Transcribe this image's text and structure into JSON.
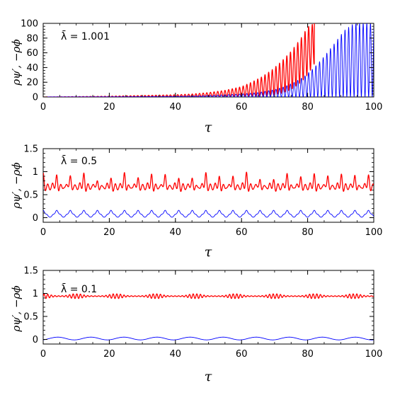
{
  "chart_data": [
    {
      "type": "line",
      "xlabel": "τ",
      "ylabel": "ρψ′, −ρϕ",
      "annotation": "λ̄ = 1.001",
      "xlim": [
        0,
        100
      ],
      "ylim": [
        0,
        100
      ],
      "xticks": [
        0,
        20,
        40,
        60,
        80,
        100
      ],
      "xtick_labels": [
        "0",
        "20",
        "40",
        "60",
        "80",
        "100"
      ],
      "yticks": [
        0,
        20,
        40,
        60,
        80,
        100
      ],
      "ytick_labels": [
        "0",
        "20",
        "40",
        "60",
        "80",
        "100"
      ],
      "grid": false,
      "series": [
        {
          "color": "#ff0000",
          "x": [
            0,
            10,
            20,
            30,
            40,
            45,
            50,
            55,
            60,
            63,
            66,
            69,
            72,
            75,
            78,
            80,
            82
          ],
          "y_min": [
            0,
            0,
            0,
            0,
            0,
            0,
            0,
            0,
            0,
            0,
            0,
            2,
            5,
            10,
            20,
            30,
            45
          ],
          "y_max": [
            0,
            0.5,
            1,
            2,
            3,
            4,
            6,
            9,
            14,
            20,
            27,
            36,
            48,
            62,
            80,
            95,
            100
          ],
          "oscillation_period": 1.1
        },
        {
          "color": "#0000ff",
          "x": [
            0,
            20,
            40,
            50,
            60,
            65,
            70,
            73,
            76,
            79,
            82,
            85,
            88,
            91,
            94,
            97,
            100
          ],
          "y_min": [
            0,
            0,
            0,
            0,
            0,
            0,
            0,
            0,
            0,
            0,
            0,
            0,
            0,
            0,
            0,
            0,
            0
          ],
          "y_max": [
            0,
            0.3,
            1,
            2,
            4,
            6,
            10,
            14,
            20,
            28,
            40,
            55,
            72,
            90,
            100,
            100,
            100
          ],
          "oscillation_period": 1.1
        }
      ]
    },
    {
      "type": "line",
      "xlabel": "τ",
      "ylabel": "ρψ′, −ρϕ",
      "annotation": "λ̄ = 0.5",
      "xlim": [
        0,
        100
      ],
      "ylim": [
        -0.1,
        1.5
      ],
      "xticks": [
        0,
        20,
        40,
        60,
        80,
        100
      ],
      "xtick_labels": [
        "0",
        "20",
        "40",
        "60",
        "80",
        "100"
      ],
      "yticks": [
        0,
        0.5,
        1,
        1.5
      ],
      "ytick_labels": [
        "0",
        "0.5",
        "1",
        "1.5"
      ],
      "grid": false,
      "series": [
        {
          "color": "#ff0000",
          "base": 0.62,
          "peak_values": [
            0.97,
            0.92,
            0.93,
            0.95,
            0.82,
            0.85,
            0.98,
            0.88,
            0.93,
            0.96,
            0.84,
            0.87,
            0.98,
            0.89,
            0.92,
            0.97,
            0.85,
            0.82,
            0.96,
            0.9,
            0.94,
            0.93
          ],
          "peak_spacing": 4.1
        },
        {
          "color": "#0000ff",
          "base": 0.02,
          "amplitude": 0.16,
          "period": 4.1
        }
      ]
    },
    {
      "type": "line",
      "xlabel": "τ",
      "ylabel": "ρψ′, −ρϕ",
      "annotation": "λ̄ = 0.1",
      "xlim": [
        0,
        100
      ],
      "ylim": [
        -0.1,
        1.5
      ],
      "xticks": [
        0,
        20,
        40,
        60,
        80,
        100
      ],
      "xtick_labels": [
        "0",
        "20",
        "40",
        "60",
        "80",
        "100"
      ],
      "yticks": [
        0,
        0.5,
        1,
        1.5
      ],
      "ytick_labels": [
        "0",
        "0.5",
        "1",
        "1.5"
      ],
      "grid": false,
      "series": [
        {
          "color": "#ff0000",
          "base": 0.94,
          "amplitude": 0.05,
          "burst_centers": [
            0,
            10,
            22,
            34,
            46,
            58,
            70,
            82,
            94
          ],
          "burst_width": 3.5
        },
        {
          "color": "#0000ff",
          "base": 0.02,
          "amplitude": 0.03,
          "period": 10
        }
      ]
    }
  ]
}
